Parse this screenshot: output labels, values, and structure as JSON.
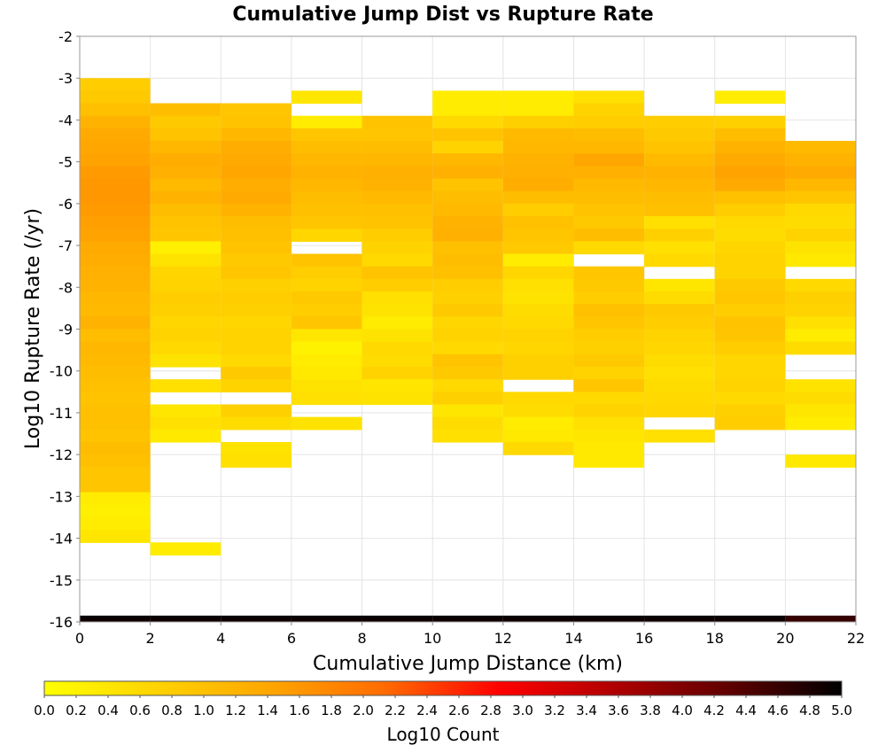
{
  "chart_data": {
    "type": "heatmap",
    "title": "Cumulative Jump Dist vs Rupture Rate",
    "xlabel": "Cumulative Jump Distance (km)",
    "ylabel": "Log10 Rupture Rate (/yr)",
    "xlim": [
      0,
      22
    ],
    "ylim": [
      -16,
      -2
    ],
    "xticks": [
      "0",
      "2",
      "4",
      "6",
      "8",
      "10",
      "12",
      "14",
      "16",
      "18",
      "20",
      "22"
    ],
    "yticks": [
      "-2",
      "-3",
      "-4",
      "-5",
      "-6",
      "-7",
      "-8",
      "-9",
      "-10",
      "-11",
      "-12",
      "-13",
      "-14",
      "-15",
      "-16"
    ],
    "x_bin_width": 2,
    "y_bin_height": 0.3,
    "grid": true,
    "colorbar": {
      "label": "Log10 Count",
      "range": [
        0,
        5
      ],
      "ticks": [
        "0.0",
        "0.2",
        "0.4",
        "0.6",
        "0.8",
        "1.0",
        "1.2",
        "1.4",
        "1.6",
        "1.8",
        "2.0",
        "2.2",
        "2.4",
        "2.6",
        "2.8",
        "3.0",
        "3.2",
        "3.4",
        "3.6",
        "3.8",
        "4.0",
        "4.2",
        "4.4",
        "4.6",
        "4.8",
        "5.0"
      ],
      "colors": [
        "#ffff00",
        "#ffd200",
        "#ffa500",
        "#ff6a00",
        "#ff0000",
        "#b00000",
        "#600000",
        "#000000"
      ]
    },
    "columns": [
      {
        "x0": 0,
        "y_top": -3.0,
        "values": [
          0.8,
          0.85,
          1.0,
          1.2,
          1.35,
          1.4,
          1.45,
          1.55,
          1.6,
          1.6,
          1.55,
          1.5,
          1.45,
          1.35,
          1.3,
          1.25,
          1.2,
          1.15,
          1.1,
          1.2,
          1.05,
          1.15,
          1.1,
          1.05,
          1.0,
          0.95,
          1.0,
          1.0,
          0.95,
          1.05,
          1.0,
          0.9,
          0.9,
          0.3,
          0.25,
          0.3,
          0.4
        ]
      },
      {
        "x0": 2,
        "y_top": -3.6,
        "values": [
          1.05,
          0.85,
          0.95,
          1.15,
          1.3,
          1.25,
          1.1,
          1.2,
          1.05,
          0.95,
          0.9,
          0.25,
          0.45,
          0.65,
          0.7,
          0.8,
          0.75,
          0.65,
          0.7,
          0.6,
          0.45,
          null,
          0.5,
          null,
          0.4,
          0.5,
          0.35,
          null,
          null,
          null,
          null,
          null,
          null,
          null,
          null,
          0.3
        ]
      },
      {
        "x0": 4,
        "y_top": -3.6,
        "values": [
          0.9,
          0.95,
          1.15,
          1.3,
          1.35,
          1.4,
          1.3,
          1.35,
          1.2,
          1.05,
          1.0,
          0.95,
          0.85,
          0.9,
          0.75,
          0.8,
          0.75,
          0.65,
          0.7,
          0.7,
          0.6,
          0.85,
          0.7,
          null,
          0.75,
          0.55,
          null,
          0.45,
          0.5
        ]
      },
      {
        "x0": 6,
        "y_top": -3.3,
        "values": [
          0.4,
          null,
          0.3,
          0.9,
          1.05,
          1.15,
          1.2,
          1.15,
          1.05,
          1.0,
          0.9,
          0.65,
          null,
          0.95,
          0.8,
          0.7,
          0.85,
          0.8,
          0.9,
          0.4,
          0.2,
          0.3,
          0.35,
          0.45,
          0.5,
          null,
          0.45
        ]
      },
      {
        "x0": 8,
        "y_top": -3.9,
        "values": [
          0.95,
          0.9,
          1.05,
          1.15,
          1.25,
          1.2,
          1.1,
          1.0,
          0.95,
          0.8,
          0.7,
          0.6,
          0.95,
          0.8,
          0.5,
          0.45,
          0.3,
          0.45,
          0.6,
          0.55,
          0.7,
          0.4,
          0.45
        ]
      },
      {
        "x0": 10,
        "y_top": -3.3,
        "values": [
          0.3,
          0.3,
          0.6,
          0.95,
          0.7,
          1.15,
          1.25,
          0.95,
          1.05,
          1.1,
          1.2,
          1.25,
          1.0,
          1.05,
          1.0,
          0.8,
          0.75,
          0.85,
          0.65,
          0.7,
          0.6,
          0.95,
          0.85,
          0.6,
          0.75,
          0.4,
          0.55,
          0.5
        ]
      },
      {
        "x0": 12,
        "y_top": -3.3,
        "values": [
          0.3,
          0.3,
          0.75,
          1.1,
          1.15,
          1.2,
          1.25,
          1.3,
          1.05,
          0.8,
          1.0,
          0.9,
          0.85,
          0.3,
          0.65,
          0.5,
          0.45,
          0.55,
          0.6,
          0.7,
          0.65,
          0.75,
          0.75,
          null,
          0.6,
          0.55,
          0.3,
          0.35,
          0.6
        ]
      },
      {
        "x0": 14,
        "y_top": -3.3,
        "values": [
          0.5,
          0.7,
          0.8,
          1.05,
          1.15,
          1.4,
          1.25,
          1.1,
          1.05,
          0.95,
          0.85,
          1.05,
          0.6,
          null,
          0.9,
          0.85,
          0.8,
          1.0,
          0.9,
          0.8,
          0.75,
          0.85,
          0.7,
          0.9,
          0.6,
          0.7,
          0.5,
          0.4,
          0.35,
          0.35
        ]
      },
      {
        "x0": 16,
        "y_top": -3.9,
        "values": [
          0.8,
          0.85,
          0.95,
          1.1,
          1.2,
          1.15,
          1.05,
          1.0,
          0.5,
          0.75,
          0.5,
          0.6,
          null,
          0.4,
          0.55,
          0.85,
          0.8,
          0.7,
          0.65,
          0.55,
          0.5,
          0.55,
          0.6,
          0.65,
          null,
          0.5
        ]
      },
      {
        "x0": 18,
        "y_top": -3.3,
        "values": [
          0.3,
          null,
          0.75,
          1.05,
          1.2,
          1.35,
          1.45,
          1.35,
          1.0,
          0.8,
          0.6,
          0.55,
          0.65,
          0.7,
          0.7,
          0.85,
          0.9,
          0.8,
          0.95,
          0.9,
          0.8,
          0.65,
          0.65,
          0.7,
          0.6,
          0.75,
          0.8
        ]
      },
      {
        "x0": 20,
        "y_top": -4.5,
        "values": [
          1.1,
          1.2,
          1.35,
          1.15,
          0.9,
          0.6,
          0.55,
          0.7,
          0.45,
          0.35,
          null,
          0.6,
          0.75,
          0.7,
          0.5,
          0.3,
          0.55,
          null,
          null,
          0.45,
          0.55,
          0.4,
          0.3,
          null,
          null,
          0.35
        ]
      }
    ],
    "bottom_strip": {
      "y_bottom": -16,
      "y_top": -15.85,
      "values": [
        4.9,
        4.9,
        4.9,
        4.9,
        4.9,
        4.9,
        4.9,
        4.9,
        4.9,
        4.9,
        4.6
      ]
    }
  }
}
